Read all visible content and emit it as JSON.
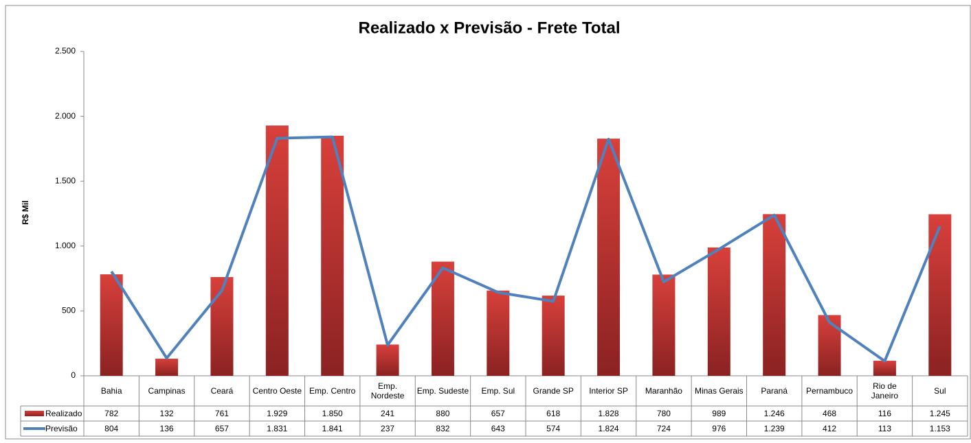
{
  "chart_data": {
    "type": "bar-line",
    "title": "Realizado x Previsão - Frete Total",
    "y_label": "R$ Mil",
    "categories": [
      "Bahia",
      "Campinas",
      "Ceará",
      "Centro Oeste",
      "Emp. Centro",
      "Emp. Nordeste",
      "Emp. Sudeste",
      "Emp. Sul",
      "Grande SP",
      "Interior SP",
      "Maranhão",
      "Minas Gerais",
      "Paraná",
      "Pernambuco",
      "Rio de Janeiro",
      "Sul"
    ],
    "series": [
      {
        "name": "Realizado",
        "kind": "bar",
        "color": "#c0302c",
        "values": [
          782,
          132,
          761,
          1929,
          1850,
          241,
          880,
          657,
          618,
          1828,
          780,
          989,
          1246,
          468,
          116,
          1245
        ],
        "value_labels": [
          "782",
          "132",
          "761",
          "1.929",
          "1.850",
          "241",
          "880",
          "657",
          "618",
          "1.828",
          "780",
          "989",
          "1.246",
          "468",
          "116",
          "1.245"
        ]
      },
      {
        "name": "Previsão",
        "kind": "line",
        "color": "#4f81bd",
        "values": [
          804,
          136,
          657,
          1831,
          1841,
          237,
          832,
          643,
          574,
          1824,
          724,
          976,
          1239,
          412,
          113,
          1153
        ],
        "value_labels": [
          "804",
          "136",
          "657",
          "1.831",
          "1.841",
          "237",
          "832",
          "643",
          "574",
          "1.824",
          "724",
          "976",
          "1.239",
          "412",
          "113",
          "1.153"
        ]
      }
    ],
    "ylim": [
      0,
      2500
    ],
    "yticks": [
      0,
      500,
      {
        "value": 1000,
        "label": "1.000"
      },
      {
        "value": 1500,
        "label": "1.500"
      },
      {
        "value": 2000,
        "label": "2.000"
      },
      {
        "value": 2500,
        "label": "2.500"
      }
    ],
    "grid": false
  }
}
